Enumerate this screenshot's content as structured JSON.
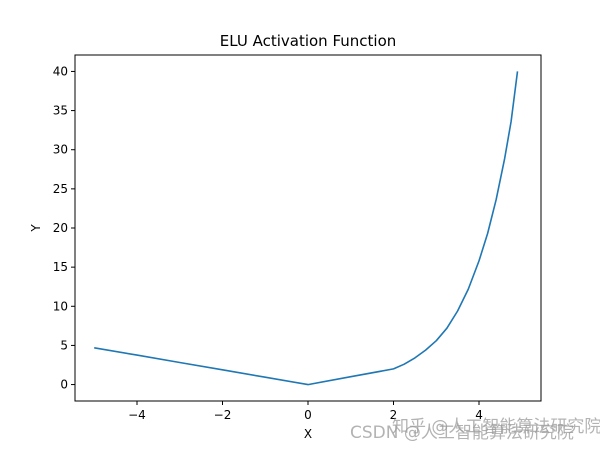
{
  "chart_data": {
    "type": "line",
    "title": "ELU Activation Function",
    "xlabel": "X",
    "ylabel": "Y",
    "xlim": [
      -5.45,
      5.45
    ],
    "ylim": [
      -2.1,
      42.1
    ],
    "xticks": [
      -4,
      -2,
      0,
      2,
      4
    ],
    "xtick_labels": [
      "−4",
      "−2",
      "0",
      "2",
      "4"
    ],
    "yticks": [
      0,
      5,
      10,
      15,
      20,
      25,
      30,
      35,
      40
    ],
    "ytick_labels": [
      "0",
      "5",
      "10",
      "15",
      "20",
      "25",
      "30",
      "35",
      "40"
    ],
    "grid": false,
    "legend": null,
    "series": [
      {
        "name": "ELU",
        "color": "#1f77b4",
        "x": [
          -5.0,
          -4.0,
          -3.0,
          -2.0,
          -1.0,
          0.0,
          1.0,
          2.0,
          2.25,
          2.5,
          2.75,
          3.0,
          3.25,
          3.5,
          3.75,
          4.0,
          4.2,
          4.4,
          4.6,
          4.75,
          4.9
        ],
        "y": [
          4.7,
          3.76,
          2.82,
          1.88,
          0.94,
          0.0,
          1.0,
          2.0,
          2.6,
          3.4,
          4.4,
          5.6,
          7.2,
          9.4,
          12.2,
          15.8,
          19.3,
          23.6,
          28.9,
          33.6,
          40.0
        ]
      }
    ]
  },
  "watermark": {
    "line1": "知乎 @人工智能算法研究院",
    "line2": "CSDN @人工智能算法研究院"
  }
}
